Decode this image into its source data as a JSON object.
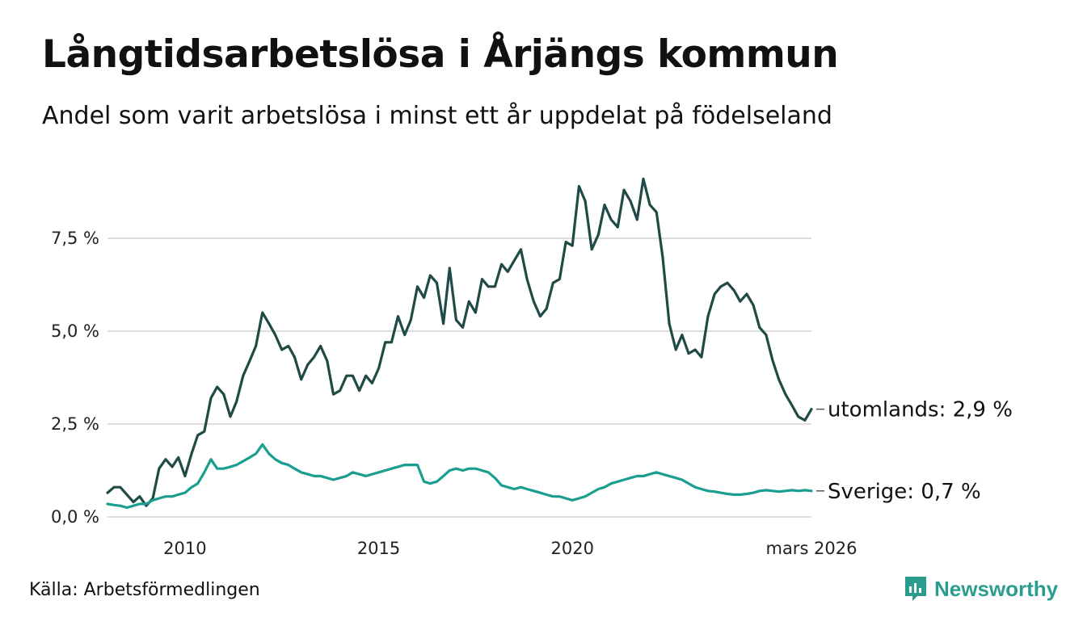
{
  "header": {
    "title": "Långtidsarbetslösa i Årjängs kommun",
    "subtitle": "Andel som varit arbetslösa i minst ett år uppdelat på födelseland"
  },
  "footer": {
    "source": "Källa: Arbetsförmedlingen",
    "brand": "Newsworthy"
  },
  "colors": {
    "utomlands": "#1f4a45",
    "sverige": "#1a9e8f",
    "grid": "#dddddd",
    "brand": "#2a9d8f"
  },
  "chart_data": {
    "type": "line",
    "title": "Långtidsarbetslösa i Årjängs kommun",
    "xlabel": "",
    "ylabel": "",
    "xlim": [
      2008.0,
      2026.17
    ],
    "ylim": [
      0,
      10
    ],
    "grid": true,
    "x_ticks": [
      {
        "value": 2010,
        "label": "2010"
      },
      {
        "value": 2015,
        "label": "2015"
      },
      {
        "value": 2020,
        "label": "2020"
      },
      {
        "value": 2026.17,
        "label": "mars 2026"
      }
    ],
    "y_ticks": [
      {
        "value": 0,
        "label": "0,0 %"
      },
      {
        "value": 2.5,
        "label": "2,5 %"
      },
      {
        "value": 5,
        "label": "5,0 %"
      },
      {
        "value": 7.5,
        "label": "7,5 %"
      }
    ],
    "series": [
      {
        "name": "utomlands",
        "end_label": "utomlands: 2,9 %",
        "points": [
          [
            2008.0,
            0.65
          ],
          [
            2008.17,
            0.8
          ],
          [
            2008.33,
            0.8
          ],
          [
            2008.5,
            0.6
          ],
          [
            2008.67,
            0.4
          ],
          [
            2008.83,
            0.55
          ],
          [
            2009.0,
            0.3
          ],
          [
            2009.17,
            0.5
          ],
          [
            2009.33,
            1.3
          ],
          [
            2009.5,
            1.55
          ],
          [
            2009.67,
            1.35
          ],
          [
            2009.83,
            1.6
          ],
          [
            2010.0,
            1.1
          ],
          [
            2010.17,
            1.7
          ],
          [
            2010.33,
            2.2
          ],
          [
            2010.5,
            2.3
          ],
          [
            2010.67,
            3.2
          ],
          [
            2010.83,
            3.5
          ],
          [
            2011.0,
            3.3
          ],
          [
            2011.17,
            2.7
          ],
          [
            2011.33,
            3.1
          ],
          [
            2011.5,
            3.8
          ],
          [
            2011.67,
            4.2
          ],
          [
            2011.83,
            4.6
          ],
          [
            2012.0,
            5.5
          ],
          [
            2012.17,
            5.2
          ],
          [
            2012.33,
            4.9
          ],
          [
            2012.5,
            4.5
          ],
          [
            2012.67,
            4.6
          ],
          [
            2012.83,
            4.3
          ],
          [
            2013.0,
            3.7
          ],
          [
            2013.17,
            4.1
          ],
          [
            2013.33,
            4.3
          ],
          [
            2013.5,
            4.6
          ],
          [
            2013.67,
            4.2
          ],
          [
            2013.83,
            3.3
          ],
          [
            2014.0,
            3.4
          ],
          [
            2014.17,
            3.8
          ],
          [
            2014.33,
            3.8
          ],
          [
            2014.5,
            3.4
          ],
          [
            2014.67,
            3.8
          ],
          [
            2014.83,
            3.6
          ],
          [
            2015.0,
            4.0
          ],
          [
            2015.17,
            4.7
          ],
          [
            2015.33,
            4.7
          ],
          [
            2015.5,
            5.4
          ],
          [
            2015.67,
            4.9
          ],
          [
            2015.83,
            5.3
          ],
          [
            2016.0,
            6.2
          ],
          [
            2016.17,
            5.9
          ],
          [
            2016.33,
            6.5
          ],
          [
            2016.5,
            6.3
          ],
          [
            2016.67,
            5.2
          ],
          [
            2016.83,
            6.7
          ],
          [
            2017.0,
            5.3
          ],
          [
            2017.17,
            5.1
          ],
          [
            2017.33,
            5.8
          ],
          [
            2017.5,
            5.5
          ],
          [
            2017.67,
            6.4
          ],
          [
            2017.83,
            6.2
          ],
          [
            2018.0,
            6.2
          ],
          [
            2018.17,
            6.8
          ],
          [
            2018.33,
            6.6
          ],
          [
            2018.5,
            6.9
          ],
          [
            2018.67,
            7.2
          ],
          [
            2018.83,
            6.4
          ],
          [
            2019.0,
            5.8
          ],
          [
            2019.17,
            5.4
          ],
          [
            2019.33,
            5.6
          ],
          [
            2019.5,
            6.3
          ],
          [
            2019.67,
            6.4
          ],
          [
            2019.83,
            7.4
          ],
          [
            2020.0,
            7.3
          ],
          [
            2020.17,
            8.9
          ],
          [
            2020.33,
            8.5
          ],
          [
            2020.5,
            7.2
          ],
          [
            2020.67,
            7.6
          ],
          [
            2020.83,
            8.4
          ],
          [
            2021.0,
            8.0
          ],
          [
            2021.17,
            7.8
          ],
          [
            2021.33,
            8.8
          ],
          [
            2021.5,
            8.5
          ],
          [
            2021.67,
            8.0
          ],
          [
            2021.83,
            9.1
          ],
          [
            2022.0,
            8.4
          ],
          [
            2022.17,
            8.2
          ],
          [
            2022.33,
            7.0
          ],
          [
            2022.5,
            5.2
          ],
          [
            2022.67,
            4.5
          ],
          [
            2022.83,
            4.9
          ],
          [
            2023.0,
            4.4
          ],
          [
            2023.17,
            4.5
          ],
          [
            2023.33,
            4.3
          ],
          [
            2023.5,
            5.4
          ],
          [
            2023.67,
            6.0
          ],
          [
            2023.83,
            6.2
          ],
          [
            2024.0,
            6.3
          ],
          [
            2024.17,
            6.1
          ],
          [
            2024.33,
            5.8
          ],
          [
            2024.5,
            6.0
          ],
          [
            2024.67,
            5.7
          ],
          [
            2024.83,
            5.1
          ],
          [
            2025.0,
            4.9
          ],
          [
            2025.17,
            4.2
          ],
          [
            2025.33,
            3.7
          ],
          [
            2025.5,
            3.3
          ],
          [
            2025.67,
            3.0
          ],
          [
            2025.83,
            2.7
          ],
          [
            2026.0,
            2.6
          ],
          [
            2026.17,
            2.9
          ]
        ]
      },
      {
        "name": "Sverige",
        "end_label": "Sverige: 0,7 %",
        "points": [
          [
            2008.0,
            0.35
          ],
          [
            2008.17,
            0.32
          ],
          [
            2008.33,
            0.3
          ],
          [
            2008.5,
            0.25
          ],
          [
            2008.67,
            0.3
          ],
          [
            2008.83,
            0.35
          ],
          [
            2009.0,
            0.35
          ],
          [
            2009.17,
            0.45
          ],
          [
            2009.33,
            0.5
          ],
          [
            2009.5,
            0.55
          ],
          [
            2009.67,
            0.55
          ],
          [
            2009.83,
            0.6
          ],
          [
            2010.0,
            0.65
          ],
          [
            2010.17,
            0.8
          ],
          [
            2010.33,
            0.9
          ],
          [
            2010.5,
            1.2
          ],
          [
            2010.67,
            1.55
          ],
          [
            2010.83,
            1.3
          ],
          [
            2011.0,
            1.3
          ],
          [
            2011.17,
            1.35
          ],
          [
            2011.33,
            1.4
          ],
          [
            2011.5,
            1.5
          ],
          [
            2011.67,
            1.6
          ],
          [
            2011.83,
            1.7
          ],
          [
            2012.0,
            1.95
          ],
          [
            2012.17,
            1.7
          ],
          [
            2012.33,
            1.55
          ],
          [
            2012.5,
            1.45
          ],
          [
            2012.67,
            1.4
          ],
          [
            2012.83,
            1.3
          ],
          [
            2013.0,
            1.2
          ],
          [
            2013.17,
            1.15
          ],
          [
            2013.33,
            1.1
          ],
          [
            2013.5,
            1.1
          ],
          [
            2013.67,
            1.05
          ],
          [
            2013.83,
            1.0
          ],
          [
            2014.0,
            1.05
          ],
          [
            2014.17,
            1.1
          ],
          [
            2014.33,
            1.2
          ],
          [
            2014.5,
            1.15
          ],
          [
            2014.67,
            1.1
          ],
          [
            2014.83,
            1.15
          ],
          [
            2015.0,
            1.2
          ],
          [
            2015.17,
            1.25
          ],
          [
            2015.33,
            1.3
          ],
          [
            2015.5,
            1.35
          ],
          [
            2015.67,
            1.4
          ],
          [
            2015.83,
            1.4
          ],
          [
            2016.0,
            1.4
          ],
          [
            2016.17,
            0.95
          ],
          [
            2016.33,
            0.9
          ],
          [
            2016.5,
            0.95
          ],
          [
            2016.67,
            1.1
          ],
          [
            2016.83,
            1.25
          ],
          [
            2017.0,
            1.3
          ],
          [
            2017.17,
            1.25
          ],
          [
            2017.33,
            1.3
          ],
          [
            2017.5,
            1.3
          ],
          [
            2017.67,
            1.25
          ],
          [
            2017.83,
            1.2
          ],
          [
            2018.0,
            1.05
          ],
          [
            2018.17,
            0.85
          ],
          [
            2018.33,
            0.8
          ],
          [
            2018.5,
            0.75
          ],
          [
            2018.67,
            0.8
          ],
          [
            2018.83,
            0.75
          ],
          [
            2019.0,
            0.7
          ],
          [
            2019.17,
            0.65
          ],
          [
            2019.33,
            0.6
          ],
          [
            2019.5,
            0.55
          ],
          [
            2019.67,
            0.55
          ],
          [
            2019.83,
            0.5
          ],
          [
            2020.0,
            0.45
          ],
          [
            2020.17,
            0.5
          ],
          [
            2020.33,
            0.55
          ],
          [
            2020.5,
            0.65
          ],
          [
            2020.67,
            0.75
          ],
          [
            2020.83,
            0.8
          ],
          [
            2021.0,
            0.9
          ],
          [
            2021.17,
            0.95
          ],
          [
            2021.33,
            1.0
          ],
          [
            2021.5,
            1.05
          ],
          [
            2021.67,
            1.1
          ],
          [
            2021.83,
            1.1
          ],
          [
            2022.0,
            1.15
          ],
          [
            2022.17,
            1.2
          ],
          [
            2022.33,
            1.15
          ],
          [
            2022.5,
            1.1
          ],
          [
            2022.67,
            1.05
          ],
          [
            2022.83,
            1.0
          ],
          [
            2023.0,
            0.9
          ],
          [
            2023.17,
            0.8
          ],
          [
            2023.33,
            0.75
          ],
          [
            2023.5,
            0.7
          ],
          [
            2023.67,
            0.68
          ],
          [
            2023.83,
            0.65
          ],
          [
            2024.0,
            0.62
          ],
          [
            2024.17,
            0.6
          ],
          [
            2024.33,
            0.6
          ],
          [
            2024.5,
            0.62
          ],
          [
            2024.67,
            0.65
          ],
          [
            2024.83,
            0.7
          ],
          [
            2025.0,
            0.72
          ],
          [
            2025.17,
            0.7
          ],
          [
            2025.33,
            0.68
          ],
          [
            2025.5,
            0.7
          ],
          [
            2025.67,
            0.72
          ],
          [
            2025.83,
            0.7
          ],
          [
            2026.0,
            0.72
          ],
          [
            2026.17,
            0.7
          ]
        ]
      }
    ]
  }
}
